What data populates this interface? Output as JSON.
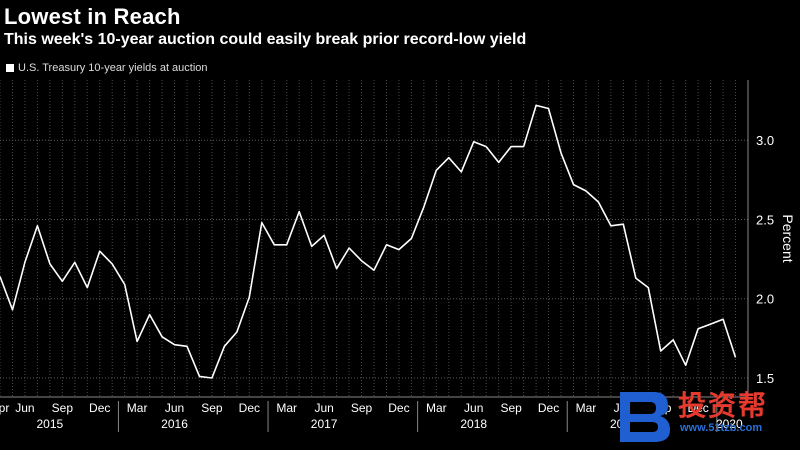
{
  "title": "Lowest in Reach",
  "subtitle": "This week's 10-year auction could easily break prior record-low yield",
  "watermark": {
    "name": "投资帮",
    "url": "www.51tzb.com"
  },
  "colors": {
    "background": "#000000",
    "line": "#ffffff",
    "grid": "#5a5a5a"
  },
  "chart_data": {
    "type": "line",
    "title": "Lowest in Reach",
    "subtitle": "This week's 10-year auction could easily break prior record-low yield",
    "legend": [
      "U.S. Treasury 10-year yields at auction"
    ],
    "ylabel": "Percent",
    "ylim": [
      1.38,
      3.38
    ],
    "yticks": [
      1.5,
      2.0,
      2.5,
      3.0
    ],
    "ytick_labels": [
      "1.5",
      "2.0",
      "2.5",
      "3.0"
    ],
    "xlim": [
      0,
      60
    ],
    "month_ticks": [
      {
        "label": "Apr",
        "x": 0
      },
      {
        "label": "Jun",
        "x": 2
      },
      {
        "label": "Sep",
        "x": 5
      },
      {
        "label": "Dec",
        "x": 8
      },
      {
        "label": "Mar",
        "x": 11
      },
      {
        "label": "Jun",
        "x": 14
      },
      {
        "label": "Sep",
        "x": 17
      },
      {
        "label": "Dec",
        "x": 20
      },
      {
        "label": "Mar",
        "x": 23
      },
      {
        "label": "Jun",
        "x": 26
      },
      {
        "label": "Sep",
        "x": 29
      },
      {
        "label": "Dec",
        "x": 32
      },
      {
        "label": "Mar",
        "x": 35
      },
      {
        "label": "Jun",
        "x": 38
      },
      {
        "label": "Sep",
        "x": 41
      },
      {
        "label": "Dec",
        "x": 44
      },
      {
        "label": "Mar",
        "x": 47
      },
      {
        "label": "Jun",
        "x": 50
      },
      {
        "label": "Sep",
        "x": 53
      },
      {
        "label": "Dec",
        "x": 56
      }
    ],
    "year_labels": [
      {
        "label": "2015",
        "x": 4
      },
      {
        "label": "2016",
        "x": 14
      },
      {
        "label": "2017",
        "x": 26
      },
      {
        "label": "2018",
        "x": 38
      },
      {
        "label": "2019",
        "x": 50
      },
      {
        "label": "2020",
        "x": 58.5
      }
    ],
    "year_separators": [
      9.5,
      21.5,
      33.5,
      45.5,
      57.5
    ],
    "series": [
      {
        "name": "U.S. Treasury 10-year yields at auction",
        "x": [
          0,
          1,
          2,
          3,
          4,
          5,
          6,
          7,
          8,
          9,
          10,
          11,
          12,
          13,
          14,
          15,
          16,
          17,
          18,
          19,
          20,
          21,
          22,
          23,
          24,
          25,
          26,
          27,
          28,
          29,
          30,
          31,
          32,
          33,
          34,
          35,
          36,
          37,
          38,
          39,
          40,
          41,
          42,
          43,
          44,
          45,
          46,
          47,
          48,
          49,
          50,
          51,
          52,
          53,
          54,
          55,
          56,
          57,
          58,
          59
        ],
        "values": [
          2.14,
          1.93,
          2.23,
          2.46,
          2.22,
          2.11,
          2.23,
          2.07,
          2.3,
          2.22,
          2.09,
          1.73,
          1.9,
          1.76,
          1.71,
          1.7,
          1.51,
          1.5,
          1.7,
          1.79,
          2.01,
          2.48,
          2.34,
          2.34,
          2.55,
          2.33,
          2.4,
          2.19,
          2.32,
          2.24,
          2.18,
          2.34,
          2.31,
          2.38,
          2.58,
          2.81,
          2.89,
          2.8,
          2.99,
          2.96,
          2.86,
          2.96,
          2.96,
          3.22,
          3.2,
          2.92,
          2.72,
          2.68,
          2.61,
          2.46,
          2.47,
          2.13,
          2.07,
          1.67,
          1.74,
          1.58,
          1.81,
          1.84,
          1.87,
          1.63
        ]
      }
    ]
  }
}
